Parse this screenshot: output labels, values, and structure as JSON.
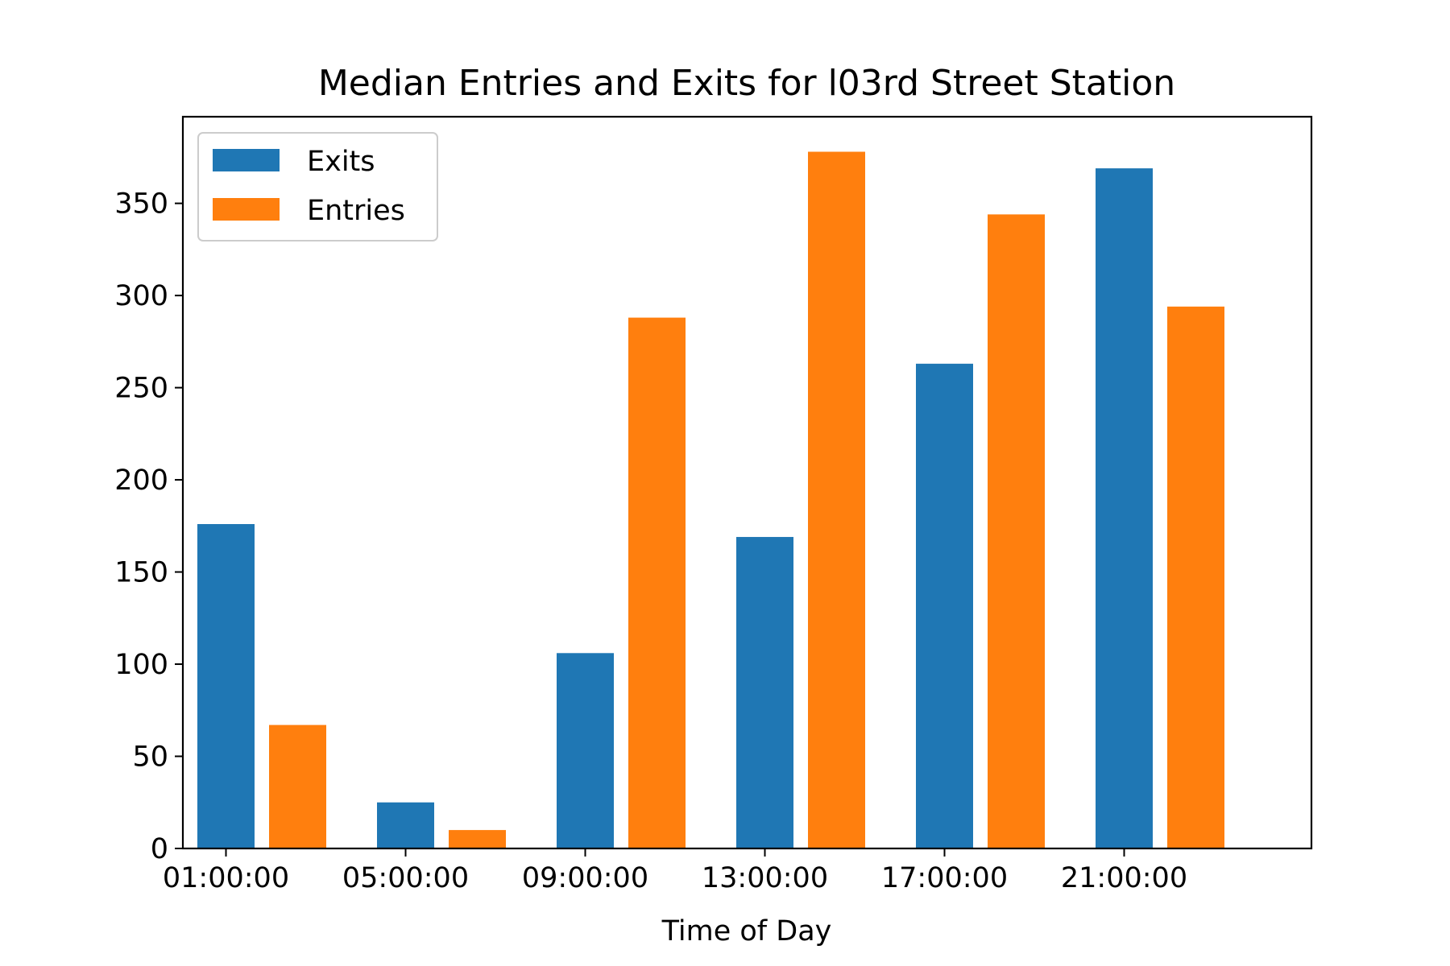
{
  "chart_data": {
    "type": "bar",
    "title": "Median Entries and Exits for l03rd Street Station",
    "xlabel": "Time of Day",
    "ylabel": "",
    "categories": [
      "01:00:00",
      "05:00:00",
      "09:00:00",
      "13:00:00",
      "17:00:00",
      "21:00:00"
    ],
    "series": [
      {
        "name": "Exits",
        "color": "#1f77b4",
        "values": [
          176,
          25,
          106,
          169,
          263,
          369
        ]
      },
      {
        "name": "Entries",
        "color": "#ff7f0e",
        "values": [
          67,
          10,
          288,
          378,
          344,
          294
        ]
      }
    ],
    "ylim": [
      0,
      397
    ],
    "yticks": [
      0,
      50,
      100,
      150,
      200,
      250,
      300,
      350
    ],
    "grid": false,
    "legend_position": "top-left"
  }
}
